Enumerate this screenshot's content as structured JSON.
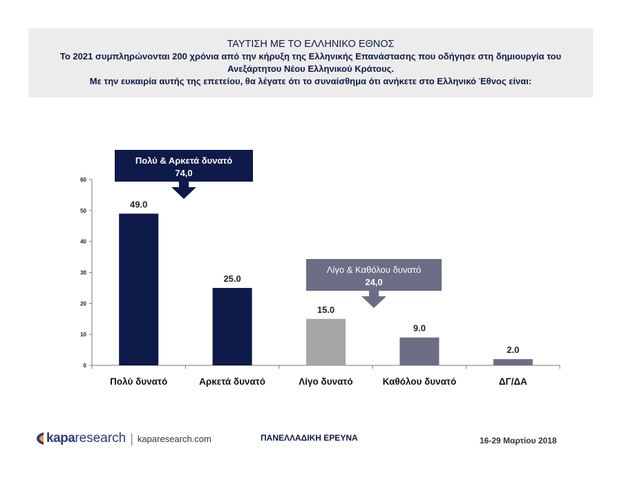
{
  "header": {
    "title": "ΤΑΥΤΙΣΗ ΜΕ ΤΟ ΕΛΛΗΝΙΚΟ ΕΘΝΟΣ",
    "line1": "Το 2021 συμπληρώνονται 200 χρόνια από την κήρυξη της Ελληνικής Επανάστασης που οδήγησε  στη δημιουργία του",
    "line2": "Ανεξάρτητου Νέου Ελληνικού Κράτους.",
    "line3": "Με την ευκαιρία αυτής της επετείου, θα λέγατε ότι το συναίσθημα ότι ανήκετε στο Ελληνικό Έθνος είναι:"
  },
  "chart_data": {
    "type": "bar",
    "categories": [
      "Πολύ δυνατό",
      "Αρκετά δυνατό",
      "Λίγο δυνατό",
      "Καθόλου δυνατό",
      "ΔΓ/ΔΑ"
    ],
    "values": [
      49.0,
      25.0,
      15.0,
      9.0,
      2.0
    ],
    "value_labels": [
      "49.0",
      "25.0",
      "15.0",
      "9.0",
      "2.0"
    ],
    "bar_colors": [
      "#0d1a4a",
      "#0d1a4a",
      "#a6a6a6",
      "#6b6e85",
      "#6b6e85"
    ],
    "ylim": [
      0,
      60
    ],
    "yticks": [
      0,
      10,
      20,
      30,
      40,
      50,
      60
    ],
    "grid": false,
    "annotations": [
      {
        "label": "Πολύ & Αρκετά δυνατό",
        "value": "74,0",
        "color": "#0d1a4a",
        "arrow_to": "Πολύ δυνατό"
      },
      {
        "label": "Λίγο & Καθόλου δυνατό",
        "value": "24,0",
        "color": "#6b6e85",
        "arrow_to": "Λίγο δυνατό"
      }
    ]
  },
  "footer": {
    "logo_kapa": "kapa",
    "logo_research": "research",
    "logo_url": "kaparesearch.com",
    "survey": "ΠΑΝΕΛΛΑΔΙΚΗ ΕΡΕΥΝΑ",
    "date": "16-29 Μαρτίου 2018"
  }
}
